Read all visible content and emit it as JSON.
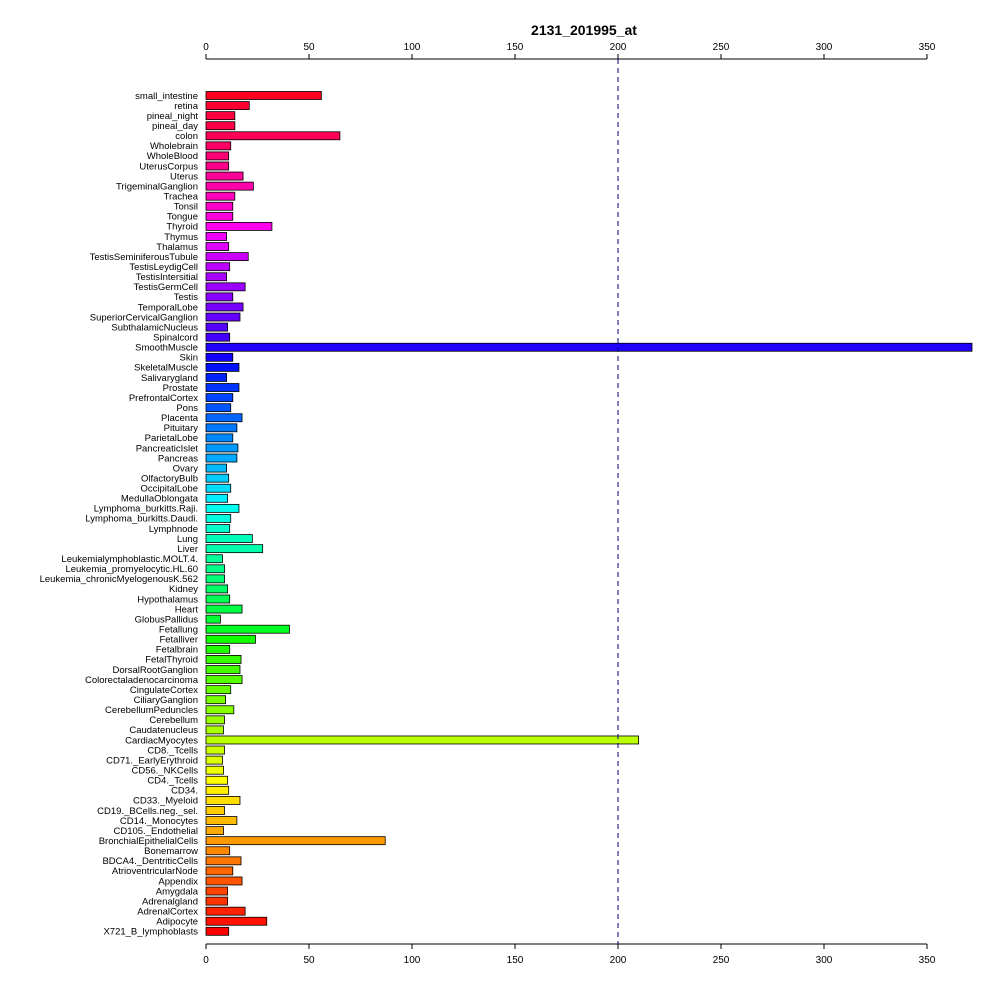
{
  "chart_data": {
    "type": "bar",
    "orientation": "horizontal",
    "title": "2131_201995_at",
    "xlabel": "",
    "ylabel": "",
    "xlim": [
      0,
      370
    ],
    "xticks": [
      "0",
      "50",
      "100",
      "150",
      "200",
      "250",
      "300",
      "350"
    ],
    "axes": [
      "top",
      "bottom"
    ],
    "reference_line": {
      "value": 200,
      "style": "dashed",
      "color": "#000080"
    },
    "grid": false,
    "legend": "none",
    "categories": [
      "small_intestine",
      "retina",
      "pineal_night",
      "pineal_day",
      "colon",
      "Wholebrain",
      "WholeBlood",
      "UterusCorpus",
      "Uterus",
      "TrigeminalGanglion",
      "Trachea",
      "Tonsil",
      "Tongue",
      "Thyroid",
      "Thymus",
      "Thalamus",
      "TestisSeminiferousTubule",
      "TestisLeydigCell",
      "TestisIntersitial",
      "TestisGermCell",
      "Testis",
      "TemporalLobe",
      "SuperiorCervicalGanglion",
      "SubthalamicNucleus",
      "Spinalcord",
      "SmoothMuscle",
      "Skin",
      "SkeletalMuscle",
      "Salivarygland",
      "Prostate",
      "PrefrontalCortex",
      "Pons",
      "Placenta",
      "Pituitary",
      "ParietalLobe",
      "PancreaticIslet",
      "Pancreas",
      "Ovary",
      "OlfactoryBulb",
      "OccipitalLobe",
      "MedullaOblongata",
      "Lymphoma_burkitts.Raji.",
      "Lymphoma_burkitts.Daudi.",
      "Lymphnode",
      "Lung",
      "Liver",
      "Leukemialymphoblastic.MOLT.4.",
      "Leukemia_promyelocytic.HL.60",
      "Leukemia_chronicMyelogenousK.562",
      "Kidney",
      "Hypothalamus",
      "Heart",
      "GlobusPallidus",
      "Fetallung",
      "Fetalliver",
      "Fetalbrain",
      "FetalThyroid",
      "DorsalRootGanglion",
      "Colorectaladenocarcinoma",
      "CingulateCortex",
      "CiliaryGanglion",
      "CerebellumPeduncles",
      "Cerebellum",
      "Caudatenucleus",
      "CardiacMyocytes",
      "CD8._Tcells",
      "CD71._EarlyErythroid",
      "CD56._NKCells",
      "CD4._Tcells",
      "CD34.",
      "CD33._Myeloid",
      "CD19._BCells.neg._sel.",
      "CD14._Monocytes",
      "CD105._Endothelial",
      "BronchialEpithelialCells",
      "Bonemarrow",
      "BDCA4._DentriticCells",
      "AtrioventricularNode",
      "Appendix",
      "Amygdala",
      "Adrenalgland",
      "AdrenalCortex",
      "Adipocyte",
      "X721_B_lymphoblasts"
    ],
    "values": [
      56,
      21,
      14,
      14,
      65,
      12,
      11,
      11,
      18,
      23,
      14,
      13,
      13,
      32,
      10,
      11,
      20.5,
      11.5,
      10,
      19,
      13,
      18,
      16.5,
      10.5,
      11.5,
      372,
      13,
      16,
      10,
      16,
      13,
      12,
      17.5,
      15,
      13,
      15.5,
      15,
      10,
      11,
      12,
      10.5,
      16,
      12,
      11.5,
      22.5,
      27.5,
      8,
      9,
      9,
      10.5,
      11.5,
      17.5,
      7,
      40.5,
      24,
      11.5,
      17,
      16.5,
      17.5,
      12,
      9.5,
      13.5,
      9,
      8.5,
      210,
      9,
      8,
      8.5,
      10.5,
      11,
      16.5,
      9,
      15,
      8.5,
      87,
      11.5,
      17,
      13,
      17.5,
      10.5,
      10.5,
      19,
      29.5,
      11
    ],
    "colors": [
      "#ff0020",
      "#ff0033",
      "#ff0040",
      "#ff0048",
      "#ff0055",
      "#ff0066",
      "#ff0077",
      "#ff0088",
      "#ff0099",
      "#ff00aa",
      "#ff00bb",
      "#ff00cc",
      "#ff00dd",
      "#ff00ee",
      "#f000ff",
      "#e000ff",
      "#cc00ff",
      "#bb00ff",
      "#aa00ff",
      "#9900ff",
      "#8800ff",
      "#7700ff",
      "#6600ff",
      "#5500ff",
      "#4400ff",
      "#2000ff",
      "#1100ff",
      "#0010ff",
      "#0022ff",
      "#0033ff",
      "#0044ff",
      "#0055ff",
      "#0066ff",
      "#0077ff",
      "#0088ff",
      "#0099ff",
      "#00aaff",
      "#00bbff",
      "#00ccff",
      "#00ddff",
      "#00eeff",
      "#00ffee",
      "#00ffdd",
      "#00ffcc",
      "#00ffbb",
      "#00ffaa",
      "#00ff99",
      "#00ff88",
      "#00ff77",
      "#00ff66",
      "#00ff55",
      "#00ff44",
      "#00ff33",
      "#00ff22",
      "#11ff00",
      "#22ff00",
      "#33ff00",
      "#44ff00",
      "#55ff00",
      "#66ff00",
      "#77ff00",
      "#88ff00",
      "#99ff00",
      "#aaff00",
      "#bbff00",
      "#ccff00",
      "#ddff00",
      "#eeff00",
      "#ffff00",
      "#ffee00",
      "#ffdd00",
      "#ffcc00",
      "#ffbb00",
      "#ffaa00",
      "#ff9900",
      "#ff8800",
      "#ff7700",
      "#ff6600",
      "#ff5500",
      "#ff4400",
      "#ff3300",
      "#ff2200",
      "#ff1100",
      "#ff0000"
    ]
  }
}
